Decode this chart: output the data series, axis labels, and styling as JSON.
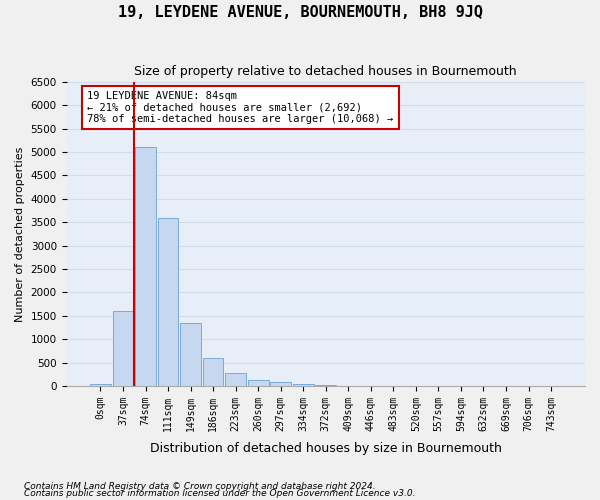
{
  "title": "19, LEYDENE AVENUE, BOURNEMOUTH, BH8 9JQ",
  "subtitle": "Size of property relative to detached houses in Bournemouth",
  "xlabel": "Distribution of detached houses by size in Bournemouth",
  "ylabel": "Number of detached properties",
  "footnote1": "Contains HM Land Registry data © Crown copyright and database right 2024.",
  "footnote2": "Contains public sector information licensed under the Open Government Licence v3.0.",
  "bin_labels": [
    "0sqm",
    "37sqm",
    "74sqm",
    "111sqm",
    "149sqm",
    "186sqm",
    "223sqm",
    "260sqm",
    "297sqm",
    "334sqm",
    "372sqm",
    "409sqm",
    "446sqm",
    "483sqm",
    "520sqm",
    "557sqm",
    "594sqm",
    "632sqm",
    "669sqm",
    "706sqm",
    "743sqm"
  ],
  "bar_values": [
    50,
    1600,
    5100,
    3600,
    1350,
    600,
    275,
    130,
    80,
    50,
    30,
    0,
    0,
    0,
    0,
    0,
    0,
    0,
    0,
    0,
    0
  ],
  "bar_color": "#c5d8f0",
  "bar_edge_color": "#7aaadc",
  "ylim": [
    0,
    6500
  ],
  "yticks": [
    0,
    500,
    1000,
    1500,
    2000,
    2500,
    3000,
    3500,
    4000,
    4500,
    5000,
    5500,
    6000,
    6500
  ],
  "vline_x": 2.0,
  "vline_color": "#cc0000",
  "annotation_text": "19 LEYDENE AVENUE: 84sqm\n← 21% of detached houses are smaller (2,692)\n78% of semi-detached houses are larger (10,068) →",
  "annotation_box_color": "#ffffff",
  "annotation_box_edge_color": "#cc0000",
  "grid_color": "#d0dcea",
  "bg_color": "#e8eef8"
}
